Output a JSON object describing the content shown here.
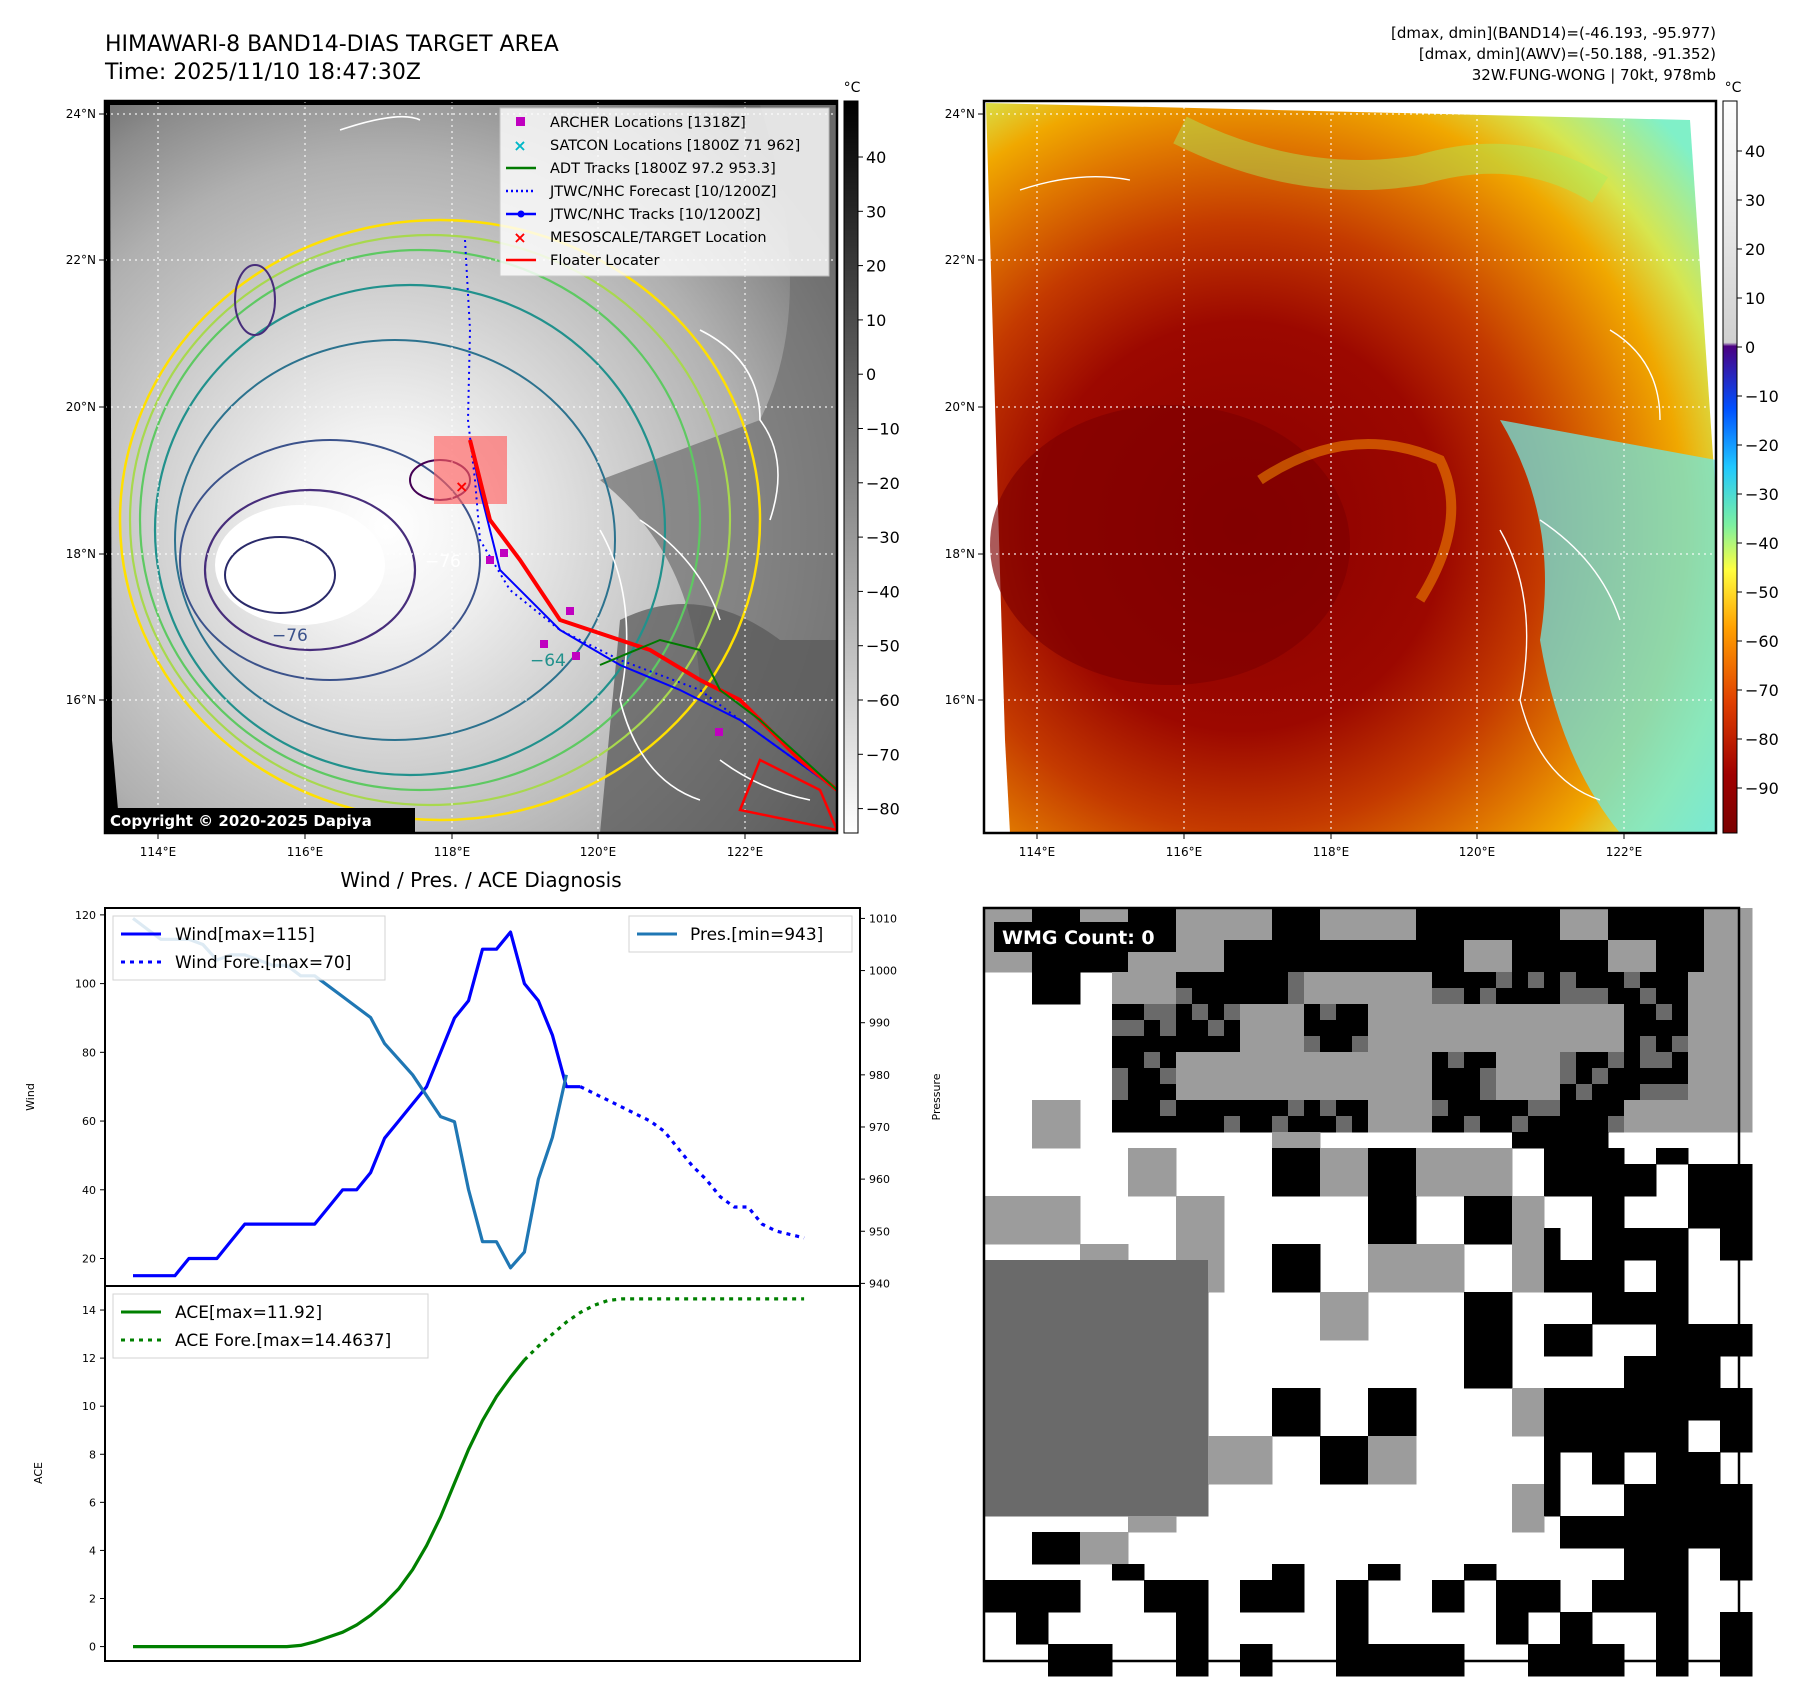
{
  "header": {
    "title_line1": "HIMAWARI-8 BAND14-DIAS TARGET AREA",
    "title_line2": "Time: 2025/11/10 18:47:30Z",
    "info_line1": "[dmax, dmin](BAND14)=(-46.193, -95.977)",
    "info_line2": "[dmax, dmin](AWV)=(-50.188, -91.352)",
    "info_line3": "32W.FUNG-WONG | 70kt, 978mb"
  },
  "map_ir": {
    "unit_label": "°C",
    "colorbar_ticks": [
      "40",
      "30",
      "20",
      "10",
      "0",
      "−10",
      "−20",
      "−30",
      "−40",
      "−50",
      "−60",
      "−70",
      "−80"
    ],
    "lon_ticks": [
      "114°E",
      "116°E",
      "118°E",
      "120°E",
      "122°E"
    ],
    "lat_ticks": [
      "24°N",
      "22°N",
      "20°N",
      "18°N",
      "16°N"
    ],
    "contour_labels": [
      "−76",
      "−76",
      "−64"
    ],
    "copyright": "Copyright © 2020-2025 Dapiya",
    "legend": [
      {
        "label": "ARCHER Locations [1318Z]",
        "color": "#c000c0",
        "symbol": "square"
      },
      {
        "label": "SATCON Locations [1800Z 71 962]",
        "color": "#00b8c8",
        "symbol": "x"
      },
      {
        "label": "ADT Tracks [1800Z 97.2 953.3]",
        "color": "#007a00",
        "symbol": "line"
      },
      {
        "label": "JTWC/NHC Forecast [10/1200Z]",
        "color": "#0000ff",
        "symbol": "dotted"
      },
      {
        "label": "JTWC/NHC Tracks [10/1200Z]",
        "color": "#0000ff",
        "symbol": "line-dot"
      },
      {
        "label": "MESOSCALE/TARGET Location",
        "color": "#ff0000",
        "symbol": "x"
      },
      {
        "label": "Floater Locater",
        "color": "#ff0000",
        "symbol": "line"
      }
    ]
  },
  "map_awv": {
    "unit_label": "°C",
    "colorbar_ticks": [
      "40",
      "30",
      "20",
      "10",
      "0",
      "−10",
      "−20",
      "−30",
      "−40",
      "−50",
      "−60",
      "−70",
      "−80",
      "−90"
    ],
    "lon_ticks": [
      "114°E",
      "116°E",
      "118°E",
      "120°E",
      "122°E"
    ],
    "lat_ticks": [
      "24°N",
      "22°N",
      "20°N",
      "18°N",
      "16°N"
    ]
  },
  "wmg": {
    "badge": "WMG Count: 0"
  },
  "diag": {
    "title": "Wind / Pres. / ACE Diagnosis",
    "wind_axis_label": "Wind",
    "pressure_axis_label": "Pressure",
    "ace_axis_label": "ACE",
    "legend_wind": "Wind[max=115]",
    "legend_wind_fore": "Wind Fore.[max=70]",
    "legend_pres": "Pres.[min=943]",
    "legend_ace": "ACE[max=11.92]",
    "legend_ace_fore": "ACE Fore.[max=14.4637]"
  },
  "chart_data": [
    {
      "type": "line",
      "title": "Wind / Pres. / ACE Diagnosis",
      "x": [
        0,
        1,
        2,
        3,
        4,
        5,
        6,
        7,
        8,
        9,
        10,
        11,
        12,
        13,
        14,
        15,
        16,
        17,
        18,
        19,
        20,
        21,
        22,
        23,
        24,
        25,
        26,
        27,
        28,
        29,
        30,
        31,
        32,
        33,
        34,
        35,
        36,
        37,
        38,
        39,
        40,
        41,
        42,
        43,
        44,
        45,
        46,
        47,
        48
      ],
      "ylim": [
        12,
        122
      ],
      "ylabel": "Wind",
      "series": [
        {
          "name": "Wind[max=115]",
          "color": "#0000ff",
          "style": "solid",
          "axis": "left",
          "values": [
            15,
            15,
            15,
            15,
            20,
            20,
            20,
            25,
            30,
            30,
            30,
            30,
            30,
            30,
            35,
            40,
            40,
            45,
            55,
            60,
            65,
            70,
            80,
            90,
            95,
            110,
            110,
            115,
            100,
            95,
            85,
            70,
            70,
            null,
            null,
            null,
            null,
            null,
            null,
            null,
            null,
            null,
            null,
            null,
            null,
            null,
            null,
            null,
            null
          ]
        },
        {
          "name": "Wind Fore.[max=70]",
          "color": "#0000ff",
          "style": "dotted",
          "axis": "left",
          "values": [
            null,
            null,
            null,
            null,
            null,
            null,
            null,
            null,
            null,
            null,
            null,
            null,
            null,
            null,
            null,
            null,
            null,
            null,
            null,
            null,
            null,
            null,
            null,
            null,
            null,
            null,
            null,
            null,
            null,
            null,
            null,
            null,
            70,
            68,
            66,
            64,
            62,
            60,
            57,
            52,
            47,
            43,
            38,
            35,
            35,
            30,
            28,
            27,
            26
          ]
        },
        {
          "name": "Pres.[min=943]",
          "color": "#1f77b4",
          "style": "solid",
          "axis": "right",
          "ylim": [
            939.5,
            1012
          ],
          "values": [
            1010,
            1008,
            1006,
            1006,
            1006,
            1005,
            1002,
            1003,
            1003,
            1002,
            1001,
            1001,
            999,
            999,
            997,
            995,
            993,
            991,
            986,
            983,
            980,
            976,
            972,
            971,
            958,
            948,
            948,
            943,
            946,
            960,
            968,
            980,
            null,
            null,
            null,
            null,
            null,
            null,
            null,
            null,
            null,
            null,
            null,
            null,
            null,
            null,
            null,
            null,
            null
          ]
        }
      ]
    },
    {
      "type": "line",
      "x": [
        0,
        1,
        2,
        3,
        4,
        5,
        6,
        7,
        8,
        9,
        10,
        11,
        12,
        13,
        14,
        15,
        16,
        17,
        18,
        19,
        20,
        21,
        22,
        23,
        24,
        25,
        26,
        27,
        28,
        29,
        30,
        31,
        32,
        33,
        34,
        35,
        36,
        37,
        38,
        39,
        40,
        41,
        42,
        43,
        44,
        45,
        46,
        47,
        48
      ],
      "ylim": [
        -0.6,
        15
      ],
      "ylabel": "ACE",
      "series": [
        {
          "name": "ACE[max=11.92]",
          "color": "#008000",
          "style": "solid",
          "values": [
            0,
            0,
            0,
            0,
            0,
            0,
            0,
            0,
            0,
            0,
            0,
            0,
            0.05,
            0.2,
            0.4,
            0.6,
            0.9,
            1.3,
            1.8,
            2.4,
            3.2,
            4.2,
            5.4,
            6.8,
            8.2,
            9.4,
            10.4,
            11.2,
            11.92,
            null,
            null,
            null,
            null,
            null,
            null,
            null,
            null,
            null,
            null,
            null,
            null,
            null,
            null,
            null,
            null,
            null,
            null,
            null,
            null
          ]
        },
        {
          "name": "ACE Fore.[max=14.4637]",
          "color": "#008000",
          "style": "dotted",
          "values": [
            null,
            null,
            null,
            null,
            null,
            null,
            null,
            null,
            null,
            null,
            null,
            null,
            null,
            null,
            null,
            null,
            null,
            null,
            null,
            null,
            null,
            null,
            null,
            null,
            null,
            null,
            null,
            null,
            11.92,
            12.5,
            13.0,
            13.5,
            13.9,
            14.2,
            14.4,
            14.4637,
            14.4637,
            14.4637,
            14.4637,
            14.4637,
            14.4637,
            14.4637,
            14.4637,
            14.4637,
            14.4637,
            14.4637,
            14.4637,
            14.4637,
            14.4637
          ]
        }
      ]
    }
  ]
}
